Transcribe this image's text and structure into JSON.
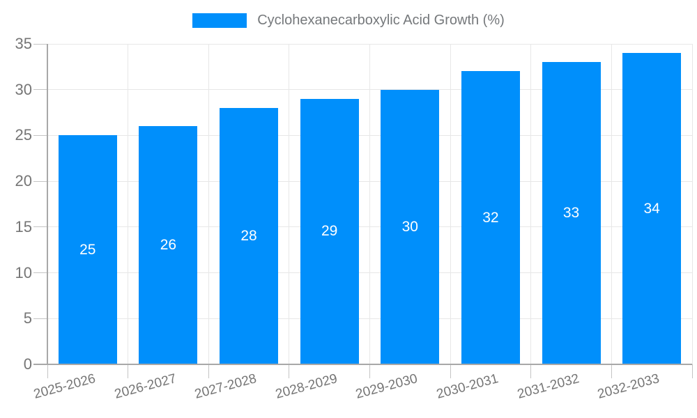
{
  "legend": {
    "label": "Cyclohexanecarboxylic Acid Growth (%)"
  },
  "chart_data": {
    "type": "bar",
    "title": "Cyclohexanecarboxylic Acid Growth (%)",
    "categories": [
      "2025-2026",
      "2026-2027",
      "2027-2028",
      "2028-2029",
      "2029-2030",
      "2030-2031",
      "2031-2032",
      "2032-2033"
    ],
    "values": [
      25,
      26,
      28,
      29,
      30,
      32,
      33,
      34
    ],
    "value_labels": [
      "25",
      "26",
      "28",
      "29",
      "30",
      "32",
      "33",
      "34"
    ],
    "ytick_labels": [
      "0",
      "5",
      "10",
      "15",
      "20",
      "25",
      "30",
      "35"
    ],
    "xlabel": "",
    "ylabel": "",
    "ylim": [
      0,
      35
    ],
    "ytick_step": 5,
    "grid": true,
    "legend_position": "top",
    "colors": {
      "bar": "#008FFB",
      "value_label": "#ffffff",
      "tick_label": "#757575",
      "grid": "#e7e7e7",
      "axis_line": "#a8a8a8",
      "tick_mark": "#c4c4c4"
    }
  }
}
